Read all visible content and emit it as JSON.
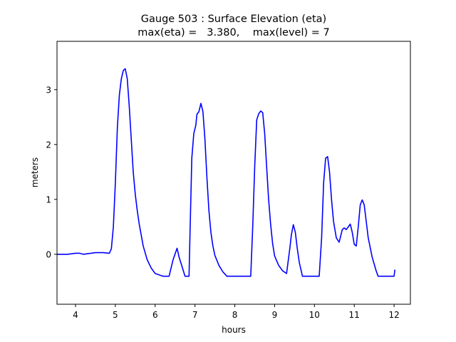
{
  "chart_data": {
    "type": "line",
    "title": "Gauge 503 : Surface Elevation (eta)",
    "subtitle": "max(eta) =   3.380,    max(level) = 7",
    "xlabel": "hours",
    "ylabel": "meters",
    "xlim": [
      3.535,
      12.41
    ],
    "ylim": [
      -0.91,
      3.88
    ],
    "xticks": [
      4,
      5,
      6,
      7,
      8,
      9,
      10,
      11,
      12
    ],
    "xtick_labels": [
      "4",
      "5",
      "6",
      "7",
      "8",
      "9",
      "10",
      "11",
      "12"
    ],
    "yticks": [
      0,
      1,
      2,
      3
    ],
    "ytick_labels": [
      "0",
      "1",
      "2",
      "3"
    ],
    "grid": false,
    "series": [
      {
        "name": "eta",
        "color": "#0000ff",
        "x": [
          3.54,
          3.8,
          4.0,
          4.1,
          4.2,
          4.3,
          4.5,
          4.7,
          4.85,
          4.9,
          4.95,
          5.0,
          5.05,
          5.1,
          5.15,
          5.2,
          5.25,
          5.3,
          5.35,
          5.4,
          5.45,
          5.5,
          5.55,
          5.6,
          5.7,
          5.8,
          5.9,
          6.0,
          6.2,
          6.35,
          6.45,
          6.55,
          6.6,
          6.75,
          6.85,
          6.88,
          6.92,
          6.97,
          7.02,
          7.05,
          7.1,
          7.15,
          7.2,
          7.25,
          7.3,
          7.35,
          7.4,
          7.45,
          7.5,
          7.6,
          7.7,
          7.8,
          7.9,
          8.0,
          8.2,
          8.4,
          8.45,
          8.5,
          8.55,
          8.6,
          8.65,
          8.7,
          8.75,
          8.8,
          8.85,
          8.9,
          8.95,
          9.0,
          9.1,
          9.2,
          9.3,
          9.38,
          9.42,
          9.47,
          9.52,
          9.57,
          9.62,
          9.7,
          9.8,
          10.0,
          10.12,
          10.18,
          10.23,
          10.28,
          10.33,
          10.38,
          10.43,
          10.48,
          10.55,
          10.62,
          10.7,
          10.75,
          10.8,
          10.85,
          10.9,
          10.95,
          11.0,
          11.05,
          11.1,
          11.15,
          11.2,
          11.25,
          11.3,
          11.35,
          11.45,
          11.55,
          11.6,
          11.7,
          11.8,
          11.9,
          12.0,
          12.02
        ],
        "y": [
          0.0,
          0.0,
          0.02,
          0.02,
          0.0,
          0.01,
          0.03,
          0.03,
          0.02,
          0.1,
          0.5,
          1.3,
          2.3,
          2.9,
          3.2,
          3.35,
          3.38,
          3.2,
          2.7,
          2.1,
          1.5,
          1.1,
          0.8,
          0.55,
          0.15,
          -0.1,
          -0.25,
          -0.35,
          -0.4,
          -0.4,
          -0.1,
          0.11,
          -0.05,
          -0.4,
          -0.4,
          0.5,
          1.75,
          2.2,
          2.35,
          2.55,
          2.6,
          2.75,
          2.6,
          2.1,
          1.4,
          0.8,
          0.4,
          0.15,
          -0.02,
          -0.2,
          -0.32,
          -0.4,
          -0.4,
          -0.4,
          -0.4,
          -0.4,
          0.5,
          1.6,
          2.45,
          2.56,
          2.61,
          2.58,
          2.2,
          1.6,
          1.0,
          0.55,
          0.2,
          -0.03,
          -0.2,
          -0.3,
          -0.35,
          0.1,
          0.35,
          0.54,
          0.4,
          0.1,
          -0.15,
          -0.4,
          -0.4,
          -0.4,
          -0.4,
          0.3,
          1.3,
          1.75,
          1.78,
          1.5,
          1.0,
          0.6,
          0.3,
          0.22,
          0.45,
          0.48,
          0.45,
          0.5,
          0.55,
          0.4,
          0.18,
          0.15,
          0.5,
          0.9,
          0.99,
          0.9,
          0.6,
          0.3,
          -0.05,
          -0.3,
          -0.4,
          -0.4,
          -0.4,
          -0.4,
          -0.4,
          -0.28
        ]
      }
    ]
  }
}
